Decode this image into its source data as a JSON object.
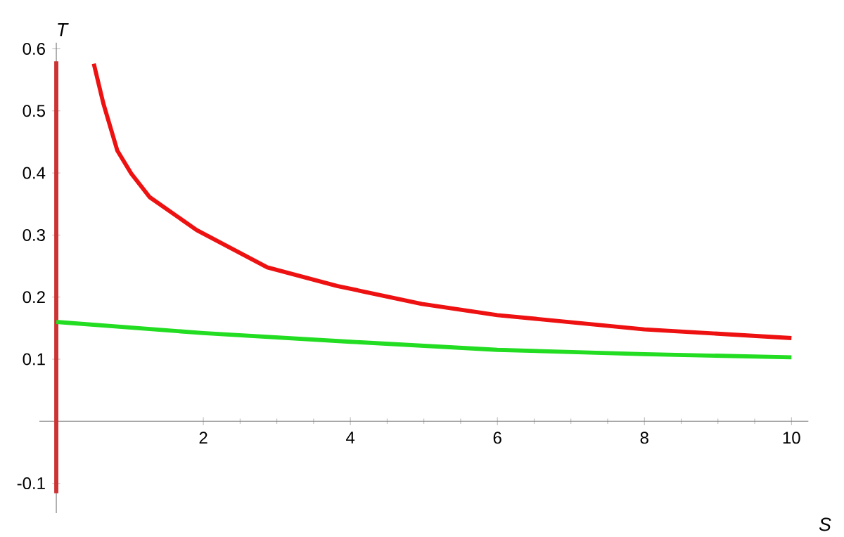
{
  "chart_data": {
    "type": "line",
    "xlabel": "S",
    "ylabel": "T",
    "xlim": [
      -0.23,
      10.23
    ],
    "ylim": [
      -0.148,
      0.61
    ],
    "xticks": [
      2,
      4,
      6,
      8,
      10
    ],
    "yticks": [
      -0.1,
      0.1,
      0.2,
      0.3,
      0.4,
      0.5,
      0.6
    ],
    "series": [
      {
        "color": "#cc3333",
        "x": [
          0,
          0
        ],
        "values": [
          -0.116,
          0.58
        ]
      },
      {
        "color": "#ee1111",
        "x": [
          0.51,
          0.64,
          0.83,
          1.02,
          1.27,
          1.91,
          2.87,
          3.82,
          4.97,
          6,
          8,
          10
        ],
        "values": [
          0.576,
          0.512,
          0.436,
          0.399,
          0.361,
          0.308,
          0.248,
          0.218,
          0.189,
          0.171,
          0.148,
          0.134
        ]
      },
      {
        "color": "#22dd22",
        "x": [
          0,
          2,
          4,
          6,
          8,
          10
        ],
        "values": [
          0.16,
          0.142,
          0.128,
          0.115,
          0.108,
          0.103
        ]
      }
    ]
  }
}
